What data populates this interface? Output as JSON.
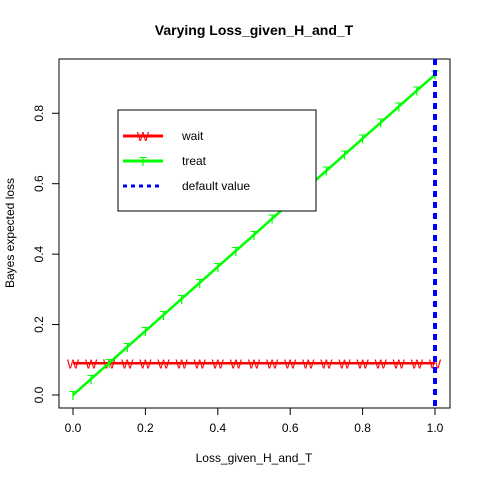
{
  "chart_data": {
    "type": "line",
    "title": "Varying Loss_given_H_and_T",
    "xlabel": "Loss_given_H_and_T",
    "ylabel": "Bayes expected loss",
    "xlim": [
      0,
      1
    ],
    "ylim": [
      0,
      0.92
    ],
    "x_ticks": [
      "0.0",
      "0.2",
      "0.4",
      "0.6",
      "0.8",
      "1.0"
    ],
    "y_ticks": [
      "0.0",
      "0.2",
      "0.4",
      "0.6",
      "0.8"
    ],
    "x": [
      0,
      0.05,
      0.1,
      0.15,
      0.2,
      0.25,
      0.3,
      0.35,
      0.4,
      0.45,
      0.5,
      0.55,
      0.6,
      0.65,
      0.7,
      0.75,
      0.8,
      0.85,
      0.9,
      0.95,
      1.0
    ],
    "series": [
      {
        "name": "wait",
        "marker": "W",
        "color": "#ff0000",
        "values": [
          0.09,
          0.09,
          0.09,
          0.09,
          0.09,
          0.09,
          0.09,
          0.09,
          0.09,
          0.09,
          0.09,
          0.09,
          0.09,
          0.09,
          0.09,
          0.09,
          0.09,
          0.09,
          0.09,
          0.09,
          0.09
        ]
      },
      {
        "name": "treat",
        "marker": "T",
        "color": "#00ff00",
        "values": [
          0.0,
          0.0455,
          0.091,
          0.1365,
          0.182,
          0.2275,
          0.273,
          0.3185,
          0.364,
          0.4095,
          0.455,
          0.5005,
          0.546,
          0.5915,
          0.637,
          0.6825,
          0.728,
          0.7735,
          0.819,
          0.8645,
          0.91
        ]
      }
    ],
    "vline": {
      "name": "default value",
      "x": 1.0,
      "color": "#0000ff",
      "style": "dashed"
    },
    "legend_position": "top-left",
    "grid": false
  }
}
